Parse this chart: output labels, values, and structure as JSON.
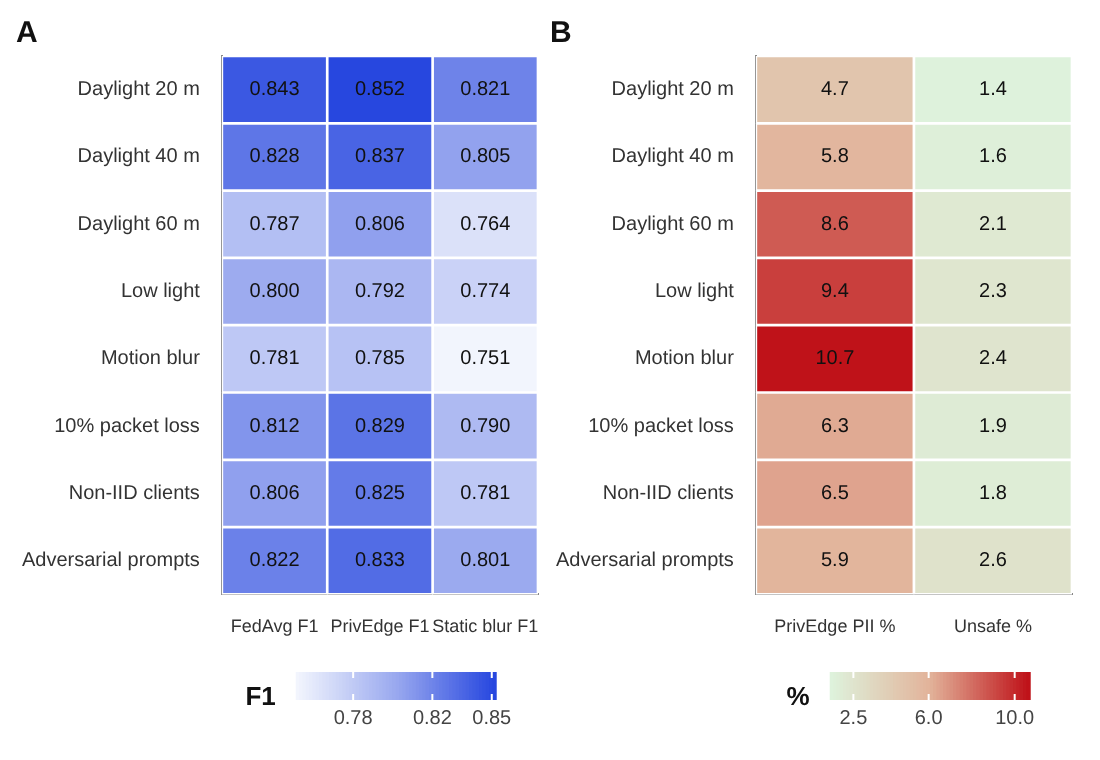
{
  "chart_data": [
    {
      "type": "heatmap",
      "title": "A",
      "categories": [
        "FedAvg F1",
        "PrivEdge F1",
        "Static blur F1"
      ],
      "y_categories": [
        "Daylight 20 m",
        "Daylight 40 m",
        "Daylight 60 m",
        "Low light",
        "Motion blur",
        "10% packet loss",
        "Non-IID clients",
        "Adversarial prompts"
      ],
      "cells": [
        [
          0.843,
          0.852,
          0.821
        ],
        [
          0.828,
          0.837,
          0.805
        ],
        [
          0.787,
          0.806,
          0.764
        ],
        [
          0.8,
          0.792,
          0.774
        ],
        [
          0.781,
          0.785,
          0.751
        ],
        [
          0.812,
          0.829,
          0.79
        ],
        [
          0.806,
          0.825,
          0.781
        ],
        [
          0.822,
          0.833,
          0.801
        ]
      ],
      "data_labels": true,
      "cell_labels": [
        [
          "0.843",
          "0.852",
          "0.821"
        ],
        [
          "0.828",
          "0.837",
          "0.805"
        ],
        [
          "0.787",
          "0.806",
          "0.764"
        ],
        [
          "0.800",
          "0.792",
          "0.774"
        ],
        [
          "0.781",
          "0.785",
          "0.751"
        ],
        [
          "0.812",
          "0.829",
          "0.790"
        ],
        [
          "0.806",
          "0.825",
          "0.781"
        ],
        [
          "0.822",
          "0.833",
          "0.801"
        ]
      ],
      "clabel": "F1",
      "clim": [
        0.751,
        0.852
      ],
      "cticks": [
        0.78,
        0.82,
        0.85
      ]
    },
    {
      "type": "heatmap",
      "title": "B",
      "categories": [
        "PrivEdge PII %",
        "Unsafe %"
      ],
      "y_categories": [
        "Daylight 20 m",
        "Daylight 40 m",
        "Daylight 60 m",
        "Low light",
        "Motion blur",
        "10% packet loss",
        "Non-IID clients",
        "Adversarial prompts"
      ],
      "cells": [
        [
          4.7,
          1.4
        ],
        [
          5.8,
          1.6
        ],
        [
          8.6,
          2.1
        ],
        [
          9.4,
          2.3
        ],
        [
          10.7,
          2.4
        ],
        [
          6.3,
          1.9
        ],
        [
          6.5,
          1.8
        ],
        [
          5.9,
          2.6
        ]
      ],
      "data_labels": true,
      "cell_labels": [
        [
          "4.7",
          "1.4"
        ],
        [
          "5.8",
          "1.6"
        ],
        [
          "8.6",
          "2.1"
        ],
        [
          "9.4",
          "2.3"
        ],
        [
          "10.7",
          "2.4"
        ],
        [
          "6.3",
          "1.9"
        ],
        [
          "6.5",
          "1.8"
        ],
        [
          "5.9",
          "2.6"
        ]
      ],
      "clabel": "%",
      "clim": [
        1.4,
        10.7
      ],
      "cticks": [
        2.5,
        {
          "value": 6,
          "label": "6.0"
        },
        {
          "value": 10,
          "label": "10.0"
        }
      ]
    }
  ]
}
